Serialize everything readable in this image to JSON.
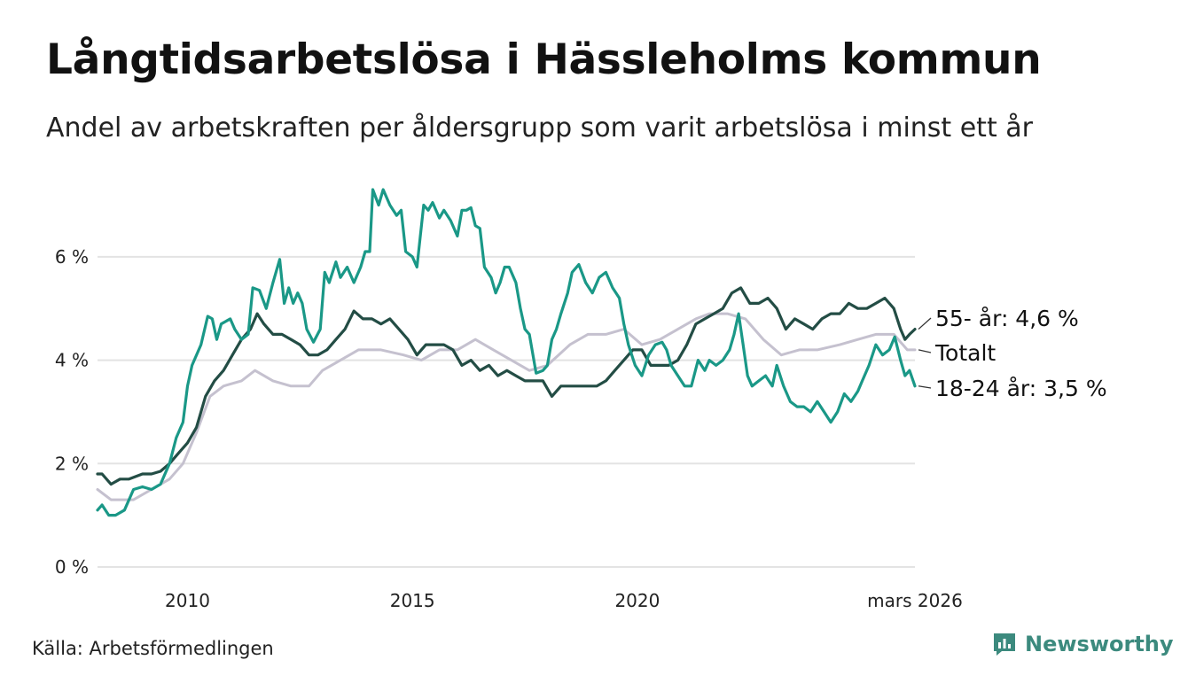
{
  "title": "Långtidsarbetslösa i Hässleholms kommun",
  "subtitle": "Andel av arbetskraften per åldersgrupp som varit arbetslösa i minst ett år",
  "source": "Källa: Arbetsförmedlingen",
  "brand": "Newsworthy",
  "colors": {
    "young": "#1a9887",
    "old": "#234d45",
    "total": "#c5c1cf",
    "grid": "#e3e3e3"
  },
  "chart_data": {
    "type": "line",
    "title": "Långtidsarbetslösa i Hässleholms kommun",
    "xlim": [
      2008.0,
      2026.17
    ],
    "ylim": [
      0,
      7.3
    ],
    "yticks": [
      {
        "value": 0,
        "label": "0 %"
      },
      {
        "value": 2,
        "label": "2 %"
      },
      {
        "value": 4,
        "label": "4 %"
      },
      {
        "value": 6,
        "label": "6 %"
      }
    ],
    "xticks": [
      {
        "value": 2010,
        "label": "2010"
      },
      {
        "value": 2015,
        "label": "2015"
      },
      {
        "value": 2020,
        "label": "2020"
      },
      {
        "value": 2026.17,
        "label": "mars 2026"
      }
    ],
    "series": [
      {
        "key": "young",
        "name": "18-24 år",
        "end_label": "18-24 år: 3,5 %",
        "points": [
          [
            2008.0,
            1.1
          ],
          [
            2008.1,
            1.2
          ],
          [
            2008.25,
            1.0
          ],
          [
            2008.4,
            1.0
          ],
          [
            2008.6,
            1.1
          ],
          [
            2008.8,
            1.5
          ],
          [
            2009.0,
            1.55
          ],
          [
            2009.2,
            1.5
          ],
          [
            2009.4,
            1.6
          ],
          [
            2009.6,
            2.0
          ],
          [
            2009.75,
            2.5
          ],
          [
            2009.9,
            2.8
          ],
          [
            2010.0,
            3.5
          ],
          [
            2010.1,
            3.9
          ],
          [
            2010.3,
            4.3
          ],
          [
            2010.45,
            4.85
          ],
          [
            2010.55,
            4.8
          ],
          [
            2010.65,
            4.4
          ],
          [
            2010.75,
            4.7
          ],
          [
            2010.95,
            4.8
          ],
          [
            2011.05,
            4.6
          ],
          [
            2011.2,
            4.4
          ],
          [
            2011.35,
            4.5
          ],
          [
            2011.45,
            5.4
          ],
          [
            2011.6,
            5.35
          ],
          [
            2011.75,
            5.0
          ],
          [
            2011.9,
            5.5
          ],
          [
            2012.05,
            5.95
          ],
          [
            2012.15,
            5.1
          ],
          [
            2012.25,
            5.4
          ],
          [
            2012.35,
            5.1
          ],
          [
            2012.45,
            5.3
          ],
          [
            2012.55,
            5.1
          ],
          [
            2012.65,
            4.6
          ],
          [
            2012.8,
            4.35
          ],
          [
            2012.95,
            4.6
          ],
          [
            2013.05,
            5.7
          ],
          [
            2013.15,
            5.5
          ],
          [
            2013.3,
            5.9
          ],
          [
            2013.4,
            5.6
          ],
          [
            2013.55,
            5.8
          ],
          [
            2013.7,
            5.5
          ],
          [
            2013.85,
            5.8
          ],
          [
            2013.95,
            6.1
          ],
          [
            2014.05,
            6.1
          ],
          [
            2014.12,
            7.3
          ],
          [
            2014.25,
            7.0
          ],
          [
            2014.35,
            7.3
          ],
          [
            2014.5,
            7.0
          ],
          [
            2014.65,
            6.8
          ],
          [
            2014.75,
            6.9
          ],
          [
            2014.85,
            6.1
          ],
          [
            2015.0,
            6.0
          ],
          [
            2015.1,
            5.8
          ],
          [
            2015.25,
            7.0
          ],
          [
            2015.35,
            6.9
          ],
          [
            2015.45,
            7.05
          ],
          [
            2015.6,
            6.75
          ],
          [
            2015.7,
            6.9
          ],
          [
            2015.85,
            6.7
          ],
          [
            2016.0,
            6.4
          ],
          [
            2016.1,
            6.9
          ],
          [
            2016.2,
            6.9
          ],
          [
            2016.3,
            6.95
          ],
          [
            2016.4,
            6.6
          ],
          [
            2016.5,
            6.55
          ],
          [
            2016.6,
            5.8
          ],
          [
            2016.75,
            5.6
          ],
          [
            2016.85,
            5.3
          ],
          [
            2016.95,
            5.5
          ],
          [
            2017.05,
            5.8
          ],
          [
            2017.15,
            5.8
          ],
          [
            2017.3,
            5.5
          ],
          [
            2017.4,
            5.0
          ],
          [
            2017.5,
            4.6
          ],
          [
            2017.6,
            4.5
          ],
          [
            2017.75,
            3.75
          ],
          [
            2017.9,
            3.8
          ],
          [
            2018.0,
            3.9
          ],
          [
            2018.1,
            4.4
          ],
          [
            2018.2,
            4.6
          ],
          [
            2018.3,
            4.9
          ],
          [
            2018.45,
            5.3
          ],
          [
            2018.55,
            5.7
          ],
          [
            2018.7,
            5.85
          ],
          [
            2018.85,
            5.5
          ],
          [
            2019.0,
            5.3
          ],
          [
            2019.15,
            5.6
          ],
          [
            2019.3,
            5.7
          ],
          [
            2019.45,
            5.4
          ],
          [
            2019.6,
            5.2
          ],
          [
            2019.7,
            4.7
          ],
          [
            2019.8,
            4.3
          ],
          [
            2019.95,
            3.9
          ],
          [
            2020.1,
            3.7
          ],
          [
            2020.25,
            4.1
          ],
          [
            2020.4,
            4.3
          ],
          [
            2020.55,
            4.35
          ],
          [
            2020.65,
            4.2
          ],
          [
            2020.75,
            3.9
          ],
          [
            2020.9,
            3.7
          ],
          [
            2021.05,
            3.5
          ],
          [
            2021.2,
            3.5
          ],
          [
            2021.35,
            4.0
          ],
          [
            2021.5,
            3.8
          ],
          [
            2021.6,
            4.0
          ],
          [
            2021.75,
            3.9
          ],
          [
            2021.9,
            4.0
          ],
          [
            2022.05,
            4.2
          ],
          [
            2022.15,
            4.5
          ],
          [
            2022.25,
            4.9
          ],
          [
            2022.35,
            4.3
          ],
          [
            2022.45,
            3.7
          ],
          [
            2022.55,
            3.5
          ],
          [
            2022.7,
            3.6
          ],
          [
            2022.85,
            3.7
          ],
          [
            2023.0,
            3.5
          ],
          [
            2023.1,
            3.9
          ],
          [
            2023.25,
            3.5
          ],
          [
            2023.4,
            3.2
          ],
          [
            2023.55,
            3.1
          ],
          [
            2023.7,
            3.1
          ],
          [
            2023.85,
            3.0
          ],
          [
            2024.0,
            3.2
          ],
          [
            2024.15,
            3.0
          ],
          [
            2024.3,
            2.8
          ],
          [
            2024.45,
            3.0
          ],
          [
            2024.6,
            3.35
          ],
          [
            2024.75,
            3.2
          ],
          [
            2024.9,
            3.4
          ],
          [
            2025.0,
            3.6
          ],
          [
            2025.15,
            3.9
          ],
          [
            2025.3,
            4.3
          ],
          [
            2025.45,
            4.1
          ],
          [
            2025.6,
            4.2
          ],
          [
            2025.72,
            4.45
          ],
          [
            2025.85,
            4.0
          ],
          [
            2025.95,
            3.7
          ],
          [
            2026.05,
            3.8
          ],
          [
            2026.17,
            3.5
          ]
        ]
      },
      {
        "key": "old",
        "name": "55- år",
        "end_label": "55- år: 4,6 %",
        "points": [
          [
            2008.0,
            1.8
          ],
          [
            2008.1,
            1.8
          ],
          [
            2008.3,
            1.6
          ],
          [
            2008.5,
            1.7
          ],
          [
            2008.7,
            1.7
          ],
          [
            2009.0,
            1.8
          ],
          [
            2009.2,
            1.8
          ],
          [
            2009.4,
            1.85
          ],
          [
            2009.6,
            2.0
          ],
          [
            2009.8,
            2.2
          ],
          [
            2010.0,
            2.4
          ],
          [
            2010.2,
            2.7
          ],
          [
            2010.4,
            3.3
          ],
          [
            2010.6,
            3.6
          ],
          [
            2010.8,
            3.8
          ],
          [
            2011.0,
            4.1
          ],
          [
            2011.2,
            4.4
          ],
          [
            2011.4,
            4.6
          ],
          [
            2011.55,
            4.9
          ],
          [
            2011.7,
            4.7
          ],
          [
            2011.9,
            4.5
          ],
          [
            2012.1,
            4.5
          ],
          [
            2012.3,
            4.4
          ],
          [
            2012.5,
            4.3
          ],
          [
            2012.7,
            4.1
          ],
          [
            2012.9,
            4.1
          ],
          [
            2013.1,
            4.2
          ],
          [
            2013.3,
            4.4
          ],
          [
            2013.5,
            4.6
          ],
          [
            2013.7,
            4.95
          ],
          [
            2013.9,
            4.8
          ],
          [
            2014.1,
            4.8
          ],
          [
            2014.3,
            4.7
          ],
          [
            2014.5,
            4.8
          ],
          [
            2014.7,
            4.6
          ],
          [
            2014.9,
            4.4
          ],
          [
            2015.1,
            4.1
          ],
          [
            2015.3,
            4.3
          ],
          [
            2015.5,
            4.3
          ],
          [
            2015.7,
            4.3
          ],
          [
            2015.9,
            4.2
          ],
          [
            2016.1,
            3.9
          ],
          [
            2016.3,
            4.0
          ],
          [
            2016.5,
            3.8
          ],
          [
            2016.7,
            3.9
          ],
          [
            2016.9,
            3.7
          ],
          [
            2017.1,
            3.8
          ],
          [
            2017.3,
            3.7
          ],
          [
            2017.5,
            3.6
          ],
          [
            2017.7,
            3.6
          ],
          [
            2017.9,
            3.6
          ],
          [
            2018.1,
            3.3
          ],
          [
            2018.3,
            3.5
          ],
          [
            2018.5,
            3.5
          ],
          [
            2018.7,
            3.5
          ],
          [
            2018.9,
            3.5
          ],
          [
            2019.1,
            3.5
          ],
          [
            2019.3,
            3.6
          ],
          [
            2019.5,
            3.8
          ],
          [
            2019.7,
            4.0
          ],
          [
            2019.9,
            4.2
          ],
          [
            2020.1,
            4.2
          ],
          [
            2020.3,
            3.9
          ],
          [
            2020.5,
            3.9
          ],
          [
            2020.7,
            3.9
          ],
          [
            2020.9,
            4.0
          ],
          [
            2021.1,
            4.3
          ],
          [
            2021.3,
            4.7
          ],
          [
            2021.5,
            4.8
          ],
          [
            2021.7,
            4.9
          ],
          [
            2021.9,
            5.0
          ],
          [
            2022.1,
            5.3
          ],
          [
            2022.3,
            5.4
          ],
          [
            2022.5,
            5.1
          ],
          [
            2022.7,
            5.1
          ],
          [
            2022.9,
            5.2
          ],
          [
            2023.1,
            5.0
          ],
          [
            2023.3,
            4.6
          ],
          [
            2023.5,
            4.8
          ],
          [
            2023.7,
            4.7
          ],
          [
            2023.9,
            4.6
          ],
          [
            2024.1,
            4.8
          ],
          [
            2024.3,
            4.9
          ],
          [
            2024.5,
            4.9
          ],
          [
            2024.7,
            5.1
          ],
          [
            2024.9,
            5.0
          ],
          [
            2025.1,
            5.0
          ],
          [
            2025.3,
            5.1
          ],
          [
            2025.5,
            5.2
          ],
          [
            2025.7,
            5.0
          ],
          [
            2025.85,
            4.6
          ],
          [
            2025.95,
            4.4
          ],
          [
            2026.05,
            4.5
          ],
          [
            2026.17,
            4.6
          ]
        ]
      },
      {
        "key": "total",
        "name": "Totalt",
        "end_label": "Totalt",
        "points": [
          [
            2008.0,
            1.5
          ],
          [
            2008.3,
            1.3
          ],
          [
            2008.8,
            1.3
          ],
          [
            2009.2,
            1.5
          ],
          [
            2009.6,
            1.7
          ],
          [
            2009.9,
            2.0
          ],
          [
            2010.2,
            2.6
          ],
          [
            2010.5,
            3.3
          ],
          [
            2010.8,
            3.5
          ],
          [
            2011.2,
            3.6
          ],
          [
            2011.5,
            3.8
          ],
          [
            2011.9,
            3.6
          ],
          [
            2012.3,
            3.5
          ],
          [
            2012.7,
            3.5
          ],
          [
            2013.0,
            3.8
          ],
          [
            2013.4,
            4.0
          ],
          [
            2013.8,
            4.2
          ],
          [
            2014.3,
            4.2
          ],
          [
            2014.8,
            4.1
          ],
          [
            2015.2,
            4.0
          ],
          [
            2015.6,
            4.2
          ],
          [
            2016.0,
            4.2
          ],
          [
            2016.4,
            4.4
          ],
          [
            2016.8,
            4.2
          ],
          [
            2017.2,
            4.0
          ],
          [
            2017.6,
            3.8
          ],
          [
            2018.0,
            3.9
          ],
          [
            2018.5,
            4.3
          ],
          [
            2018.9,
            4.5
          ],
          [
            2019.3,
            4.5
          ],
          [
            2019.7,
            4.6
          ],
          [
            2020.1,
            4.3
          ],
          [
            2020.5,
            4.4
          ],
          [
            2020.9,
            4.6
          ],
          [
            2021.3,
            4.8
          ],
          [
            2021.6,
            4.9
          ],
          [
            2022.0,
            4.9
          ],
          [
            2022.4,
            4.8
          ],
          [
            2022.8,
            4.4
          ],
          [
            2023.2,
            4.1
          ],
          [
            2023.6,
            4.2
          ],
          [
            2024.0,
            4.2
          ],
          [
            2024.5,
            4.3
          ],
          [
            2024.9,
            4.4
          ],
          [
            2025.3,
            4.5
          ],
          [
            2025.7,
            4.5
          ],
          [
            2026.0,
            4.2
          ],
          [
            2026.17,
            4.2
          ]
        ]
      }
    ]
  }
}
